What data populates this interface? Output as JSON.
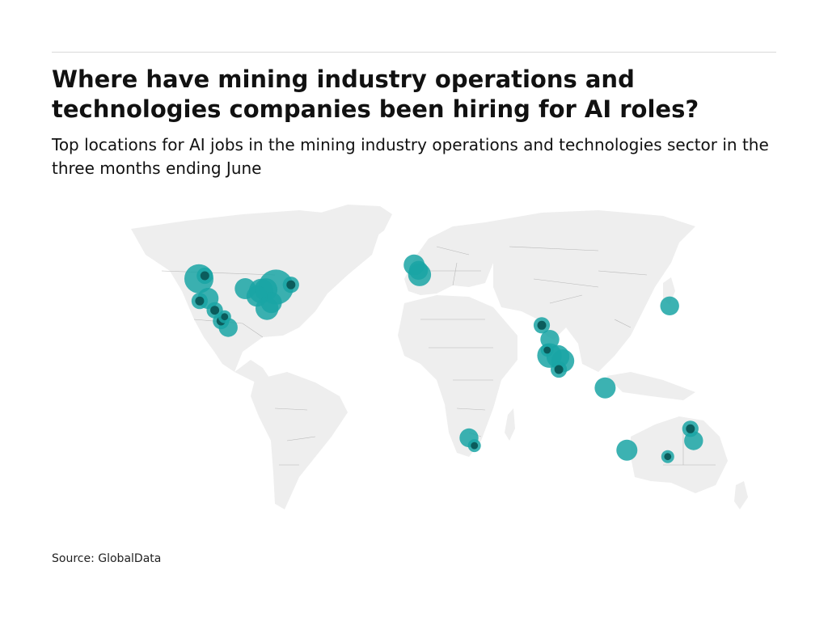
{
  "title": "Where have mining industry operations and technologies companies been hiring for AI roles?",
  "subtitle": "Top locations for AI jobs in the mining industry operations and technologies sector in the three months ending June",
  "source": "Source: GlobalData",
  "colors": {
    "bubble": "#1aa5a5",
    "bubble_dark": "#0b5c5c",
    "land": "#eeeeee",
    "border": "#b8b8b8"
  },
  "map_points": [
    {
      "lon": -122.3,
      "lat": 47.6,
      "weight": 9
    },
    {
      "lon": -119.0,
      "lat": 49.0,
      "weight": 2
    },
    {
      "lon": -79.4,
      "lat": 43.7,
      "weight": 14
    },
    {
      "lon": -85.0,
      "lat": 42.5,
      "weight": 5
    },
    {
      "lon": -87.6,
      "lat": 41.9,
      "weight": 6
    },
    {
      "lon": -90.0,
      "lat": 39.5,
      "weight": 4
    },
    {
      "lon": -96.5,
      "lat": 43.0,
      "weight": 4
    },
    {
      "lon": -84.4,
      "lat": 33.8,
      "weight": 5
    },
    {
      "lon": -82.0,
      "lat": 36.5,
      "weight": 4
    },
    {
      "lon": -71.1,
      "lat": 44.8,
      "weight": 2
    },
    {
      "lon": -121.9,
      "lat": 37.3,
      "weight": 2
    },
    {
      "lon": -117.2,
      "lat": 38.5,
      "weight": 4
    },
    {
      "lon": -113.5,
      "lat": 33.0,
      "weight": 2
    },
    {
      "lon": -108.0,
      "lat": 30.0,
      "weight": 1
    },
    {
      "lon": -110.0,
      "lat": 28.0,
      "weight": 2
    },
    {
      "lon": -106.0,
      "lat": 25.0,
      "weight": 3
    },
    {
      "lon": -2.5,
      "lat": 54.0,
      "weight": 4
    },
    {
      "lon": -0.1,
      "lat": 51.5,
      "weight": 3
    },
    {
      "lon": 0.5,
      "lat": 49.5,
      "weight": 5
    },
    {
      "lon": 68.5,
      "lat": 26.0,
      "weight": 2
    },
    {
      "lon": 73.0,
      "lat": 19.5,
      "weight": 3
    },
    {
      "lon": 72.8,
      "lat": 12.0,
      "weight": 6
    },
    {
      "lon": 77.5,
      "lat": 11.5,
      "weight": 5
    },
    {
      "lon": 80.2,
      "lat": 9.5,
      "weight": 5
    },
    {
      "lon": 78.0,
      "lat": 5.5,
      "weight": 2
    },
    {
      "lon": 71.5,
      "lat": 14.5,
      "weight": 1
    },
    {
      "lon": 139.7,
      "lat": 35.0,
      "weight": 3
    },
    {
      "lon": 103.8,
      "lat": -3.0,
      "weight": 4
    },
    {
      "lon": 28.0,
      "lat": -26.2,
      "weight": 3
    },
    {
      "lon": 31.0,
      "lat": -29.8,
      "weight": 1
    },
    {
      "lon": 153.0,
      "lat": -27.5,
      "weight": 3
    },
    {
      "lon": 151.2,
      "lat": -22.0,
      "weight": 2
    },
    {
      "lon": 115.9,
      "lat": -31.9,
      "weight": 4
    },
    {
      "lon": 138.6,
      "lat": -34.9,
      "weight": 1
    }
  ]
}
